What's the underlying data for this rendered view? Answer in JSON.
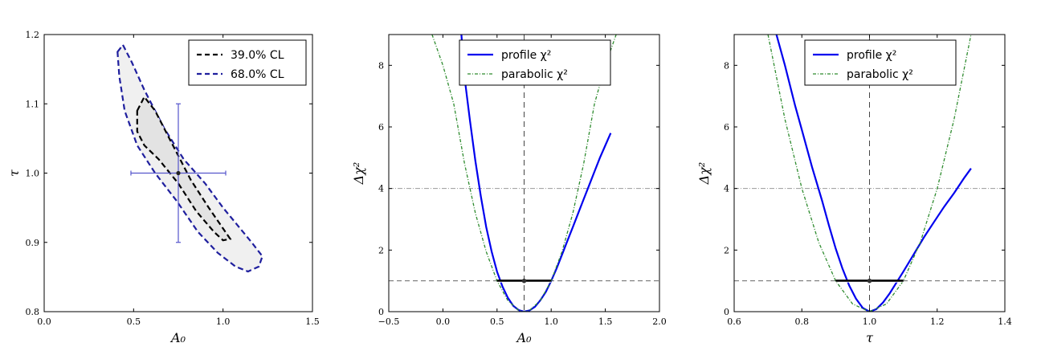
{
  "chart_data": [
    {
      "type": "contour",
      "xlabel": "A₀",
      "ylabel": "τ",
      "xlim": [
        0.0,
        1.5
      ],
      "ylim": [
        0.8,
        1.2
      ],
      "xticks": [
        "0.0",
        "0.5",
        "1.0",
        "1.5"
      ],
      "yticks": [
        "0.8",
        "0.9",
        "1.0",
        "1.1",
        "1.2"
      ],
      "legend_position": "top-right",
      "best_fit": {
        "x": 0.75,
        "y": 1.0,
        "xerr": 0.265,
        "yerr": 0.1
      },
      "series": [
        {
          "name": "39.0% CL",
          "color": "#000000",
          "points": [
            [
              0.52,
              1.09
            ],
            [
              0.56,
              1.11
            ],
            [
              0.62,
              1.09
            ],
            [
              0.72,
              1.04
            ],
            [
              0.82,
              0.99
            ],
            [
              0.92,
              0.95
            ],
            [
              1.0,
              0.92
            ],
            [
              1.04,
              0.905
            ],
            [
              1.0,
              0.903
            ],
            [
              0.95,
              0.915
            ],
            [
              0.85,
              0.945
            ],
            [
              0.75,
              0.985
            ],
            [
              0.64,
              1.02
            ],
            [
              0.56,
              1.04
            ],
            [
              0.52,
              1.06
            ],
            [
              0.52,
              1.09
            ]
          ]
        },
        {
          "name": "68.0% CL",
          "color": "#1f1f9e",
          "points": [
            [
              0.41,
              1.175
            ],
            [
              0.44,
              1.185
            ],
            [
              0.49,
              1.16
            ],
            [
              0.56,
              1.12
            ],
            [
              0.67,
              1.065
            ],
            [
              0.78,
              1.02
            ],
            [
              0.9,
              0.985
            ],
            [
              1.0,
              0.95
            ],
            [
              1.08,
              0.925
            ],
            [
              1.16,
              0.9
            ],
            [
              1.22,
              0.88
            ],
            [
              1.2,
              0.865
            ],
            [
              1.14,
              0.858
            ],
            [
              1.07,
              0.865
            ],
            [
              0.97,
              0.885
            ],
            [
              0.86,
              0.915
            ],
            [
              0.74,
              0.96
            ],
            [
              0.62,
              1.0
            ],
            [
              0.52,
              1.04
            ],
            [
              0.45,
              1.09
            ],
            [
              0.42,
              1.14
            ],
            [
              0.41,
              1.175
            ]
          ]
        }
      ]
    },
    {
      "type": "line",
      "xlabel": "A₀",
      "ylabel": "Δχ²",
      "xlim": [
        -0.5,
        2.0
      ],
      "ylim": [
        0,
        9
      ],
      "xticks": [
        "−0.5",
        "0.0",
        "0.5",
        "1.0",
        "1.5",
        "2.0"
      ],
      "yticks": [
        "0",
        "2",
        "4",
        "6",
        "8"
      ],
      "legend_position": "top-center",
      "best_fit": 0.75,
      "interval": [
        0.5,
        1.0
      ],
      "hlines": [
        1,
        4
      ],
      "series": [
        {
          "name": "profile χ²",
          "color": "#0000ee",
          "style": "solid",
          "x": [
            0.16,
            0.2,
            0.25,
            0.3,
            0.35,
            0.4,
            0.45,
            0.5,
            0.55,
            0.6,
            0.65,
            0.7,
            0.75,
            0.8,
            0.85,
            0.9,
            0.95,
            1.0,
            1.05,
            1.1,
            1.15,
            1.2,
            1.25,
            1.3,
            1.35,
            1.4,
            1.45,
            1.5,
            1.55
          ],
          "y": [
            9.5,
            7.6,
            6.2,
            4.9,
            3.75,
            2.75,
            1.95,
            1.3,
            0.82,
            0.45,
            0.19,
            0.05,
            0.0,
            0.04,
            0.16,
            0.37,
            0.64,
            1.0,
            1.4,
            1.85,
            2.3,
            2.75,
            3.2,
            3.65,
            4.1,
            4.55,
            5.0,
            5.4,
            5.8
          ]
        },
        {
          "name": "parabolic χ²",
          "color": "#2e8b2e",
          "style": "dashdot",
          "x": [
            -0.1,
            0.0,
            0.1,
            0.2,
            0.3,
            0.4,
            0.5,
            0.6,
            0.7,
            0.75,
            0.8,
            0.9,
            1.0,
            1.1,
            1.2,
            1.3,
            1.4,
            1.5,
            1.6
          ],
          "y": [
            9.0,
            8.0,
            6.75,
            4.8,
            3.2,
            1.95,
            1.0,
            0.36,
            0.04,
            0.0,
            0.04,
            0.36,
            1.0,
            1.95,
            3.2,
            4.8,
            6.75,
            8.0,
            9.0
          ]
        }
      ]
    },
    {
      "type": "line",
      "xlabel": "τ",
      "ylabel": "Δχ²",
      "xlim": [
        0.6,
        1.4
      ],
      "ylim": [
        0,
        9
      ],
      "xticks": [
        "0.6",
        "0.8",
        "1.0",
        "1.2",
        "1.4"
      ],
      "yticks": [
        "0",
        "2",
        "4",
        "6",
        "8"
      ],
      "legend_position": "top-center",
      "best_fit": 1.0,
      "interval": [
        0.9,
        1.1
      ],
      "hlines": [
        1,
        4
      ],
      "series": [
        {
          "name": "profile χ²",
          "color": "#0000ee",
          "style": "solid",
          "x": [
            0.72,
            0.75,
            0.78,
            0.8,
            0.83,
            0.86,
            0.88,
            0.9,
            0.92,
            0.94,
            0.96,
            0.98,
            1.0,
            1.02,
            1.04,
            1.06,
            1.08,
            1.1,
            1.13,
            1.16,
            1.19,
            1.22,
            1.25,
            1.28,
            1.3
          ],
          "y": [
            9.2,
            8.0,
            6.7,
            5.9,
            4.7,
            3.6,
            2.8,
            2.05,
            1.4,
            0.85,
            0.42,
            0.12,
            0.0,
            0.08,
            0.3,
            0.6,
            0.95,
            1.3,
            1.85,
            2.4,
            2.9,
            3.4,
            3.85,
            4.35,
            4.65
          ]
        },
        {
          "name": "parabolic χ²",
          "color": "#2e8b2e",
          "style": "dashdot",
          "x": [
            0.7,
            0.75,
            0.8,
            0.85,
            0.9,
            0.95,
            1.0,
            1.05,
            1.1,
            1.15,
            1.2,
            1.25,
            1.3
          ],
          "y": [
            9.0,
            6.25,
            4.0,
            2.25,
            1.0,
            0.25,
            0.0,
            0.25,
            1.0,
            2.25,
            4.0,
            6.25,
            9.0
          ]
        }
      ]
    }
  ]
}
